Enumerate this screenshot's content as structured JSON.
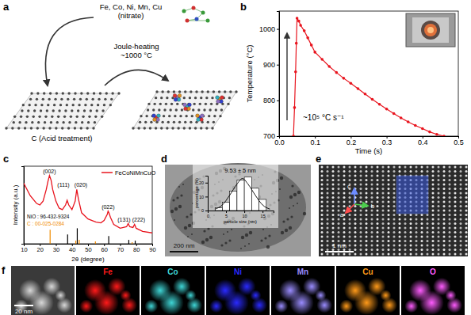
{
  "panel_labels": [
    "a",
    "b",
    "c",
    "d",
    "e",
    "f"
  ],
  "schematic": {
    "precursor": [
      "Fe, Co, Ni, Mn, Cu",
      "(nitrate)"
    ],
    "support": "C (Acid treatment)",
    "process": [
      "Joule-heating",
      "~1000 °C"
    ]
  },
  "chart_data": [
    {
      "type": "line",
      "x_label": "Time (s)",
      "y_label": "Temperature (°C)",
      "annotation": "~10⁵ °C s⁻¹",
      "color": "#e8141e",
      "marker": "circle",
      "line_style": "solid",
      "x": [
        0.04,
        0.043,
        0.046,
        0.048,
        0.05,
        0.055,
        0.06,
        0.07,
        0.08,
        0.09,
        0.1,
        0.12,
        0.14,
        0.16,
        0.18,
        0.2,
        0.22,
        0.24,
        0.26,
        0.28,
        0.3,
        0.32,
        0.34,
        0.36,
        0.38,
        0.4,
        0.42,
        0.44,
        0.46
      ],
      "values": [
        700,
        780,
        880,
        960,
        1030,
        1022,
        1010,
        995,
        975,
        955,
        935,
        915,
        895,
        878,
        862,
        848,
        833,
        818,
        803,
        789,
        776,
        763,
        751,
        740,
        730,
        721,
        712,
        705,
        700
      ],
      "xlim": [
        0,
        0.5
      ],
      "xticks": [
        {
          "value": 0,
          "label": "0.0"
        },
        {
          "value": 0.1,
          "label": "0.1"
        },
        {
          "value": 0.2,
          "label": "0.2"
        },
        {
          "value": 0.3,
          "label": "0.3"
        },
        {
          "value": 0.4,
          "label": "0.4"
        },
        {
          "value": 0.5,
          "label": "0.5"
        }
      ],
      "ylim": [
        700,
        1050
      ],
      "yticks": [
        700,
        800,
        900,
        1000
      ]
    },
    {
      "type": "line",
      "x_label": "2θ (degree)",
      "y_label": "Intensity (a.u.)",
      "legend": "upper right",
      "tick_labels": "x",
      "xlim": [
        10,
        90
      ],
      "xticks": [
        10,
        20,
        30,
        40,
        50,
        60,
        70,
        80,
        90
      ],
      "ylim": [
        0,
        100
      ],
      "yticks": [],
      "series": [
        {
          "name": "FeCoNiMnCuO",
          "type": "line",
          "color": "#e8141e",
          "x": [
            10,
            14,
            18,
            20,
            22,
            24,
            25,
            26,
            27,
            28,
            30,
            32,
            34,
            36,
            37,
            38,
            40,
            42,
            43,
            44,
            46,
            50,
            55,
            58,
            60,
            62,
            62.5,
            63,
            64,
            66,
            70,
            74,
            75,
            76,
            78,
            79,
            80,
            84,
            90
          ],
          "values": [
            78,
            62,
            52,
            50,
            55,
            70,
            80,
            88,
            82,
            70,
            55,
            46,
            44,
            50,
            56,
            50,
            44,
            55,
            70,
            58,
            40,
            32,
            28,
            27,
            30,
            38,
            42,
            40,
            34,
            25,
            20,
            22,
            26,
            22,
            21,
            25,
            20,
            16,
            14
          ]
        },
        {
          "name": "NiO : 96-432-9324",
          "type": "stem",
          "color": "#000000",
          "x": [
            37.3,
            43.3,
            62.9,
            75.4,
            79.4
          ],
          "values": [
            12,
            20,
            10,
            5,
            4
          ]
        },
        {
          "name": "C : 00-025-0284",
          "type": "stem",
          "color": "#f08c00",
          "x": [
            26.4,
            42.4,
            44.5,
            54.6,
            77.5
          ],
          "values": [
            18,
            4,
            5,
            3,
            2
          ]
        }
      ],
      "peak_labels": [
        {
          "label": "(002)",
          "x": 26
        },
        {
          "label": "(111)",
          "x": 37
        },
        {
          "label": "(020)",
          "x": 43
        },
        {
          "label": "(022)",
          "x": 62.5
        },
        {
          "label": "(131)",
          "x": 75
        },
        {
          "label": "(222)",
          "x": 79
        }
      ]
    },
    {
      "type": "histogram",
      "title": "9.53 ± 5 nm",
      "x_label": "particle size (nm)",
      "y_label": "percentage (%)",
      "bins": [
        2,
        4,
        6,
        8,
        10,
        12,
        14,
        16
      ],
      "values": [
        2,
        6,
        14,
        22,
        24,
        16,
        8
      ],
      "color": "#ffffff",
      "fit": {
        "x": [
          2,
          4,
          6,
          8,
          9.5,
          11,
          13,
          15,
          17
        ],
        "values": [
          1,
          4,
          11,
          19,
          23,
          19,
          11,
          4,
          1
        ]
      },
      "xlim": [
        0,
        18
      ],
      "xticks": [
        0,
        5,
        10,
        15
      ],
      "ylim": [
        0,
        25
      ],
      "yticks": [
        0,
        10,
        20
      ]
    }
  ],
  "tem": {
    "scale_bar": "200 nm"
  },
  "hrtem": {
    "scale_bar": "1 nm",
    "axes": [
      "c",
      "a",
      "b"
    ]
  },
  "eds": {
    "scale_bar": "20 nm",
    "maps": [
      {
        "label": "Fe",
        "color": "#ff1a1a"
      },
      {
        "label": "Co",
        "color": "#3fd6d6"
      },
      {
        "label": "Ni",
        "color": "#2a2aff"
      },
      {
        "label": "Mn",
        "color": "#9a8cff"
      },
      {
        "label": "Cu",
        "color": "#ff9a1a"
      },
      {
        "label": "O",
        "color": "#ff5cff"
      }
    ]
  }
}
